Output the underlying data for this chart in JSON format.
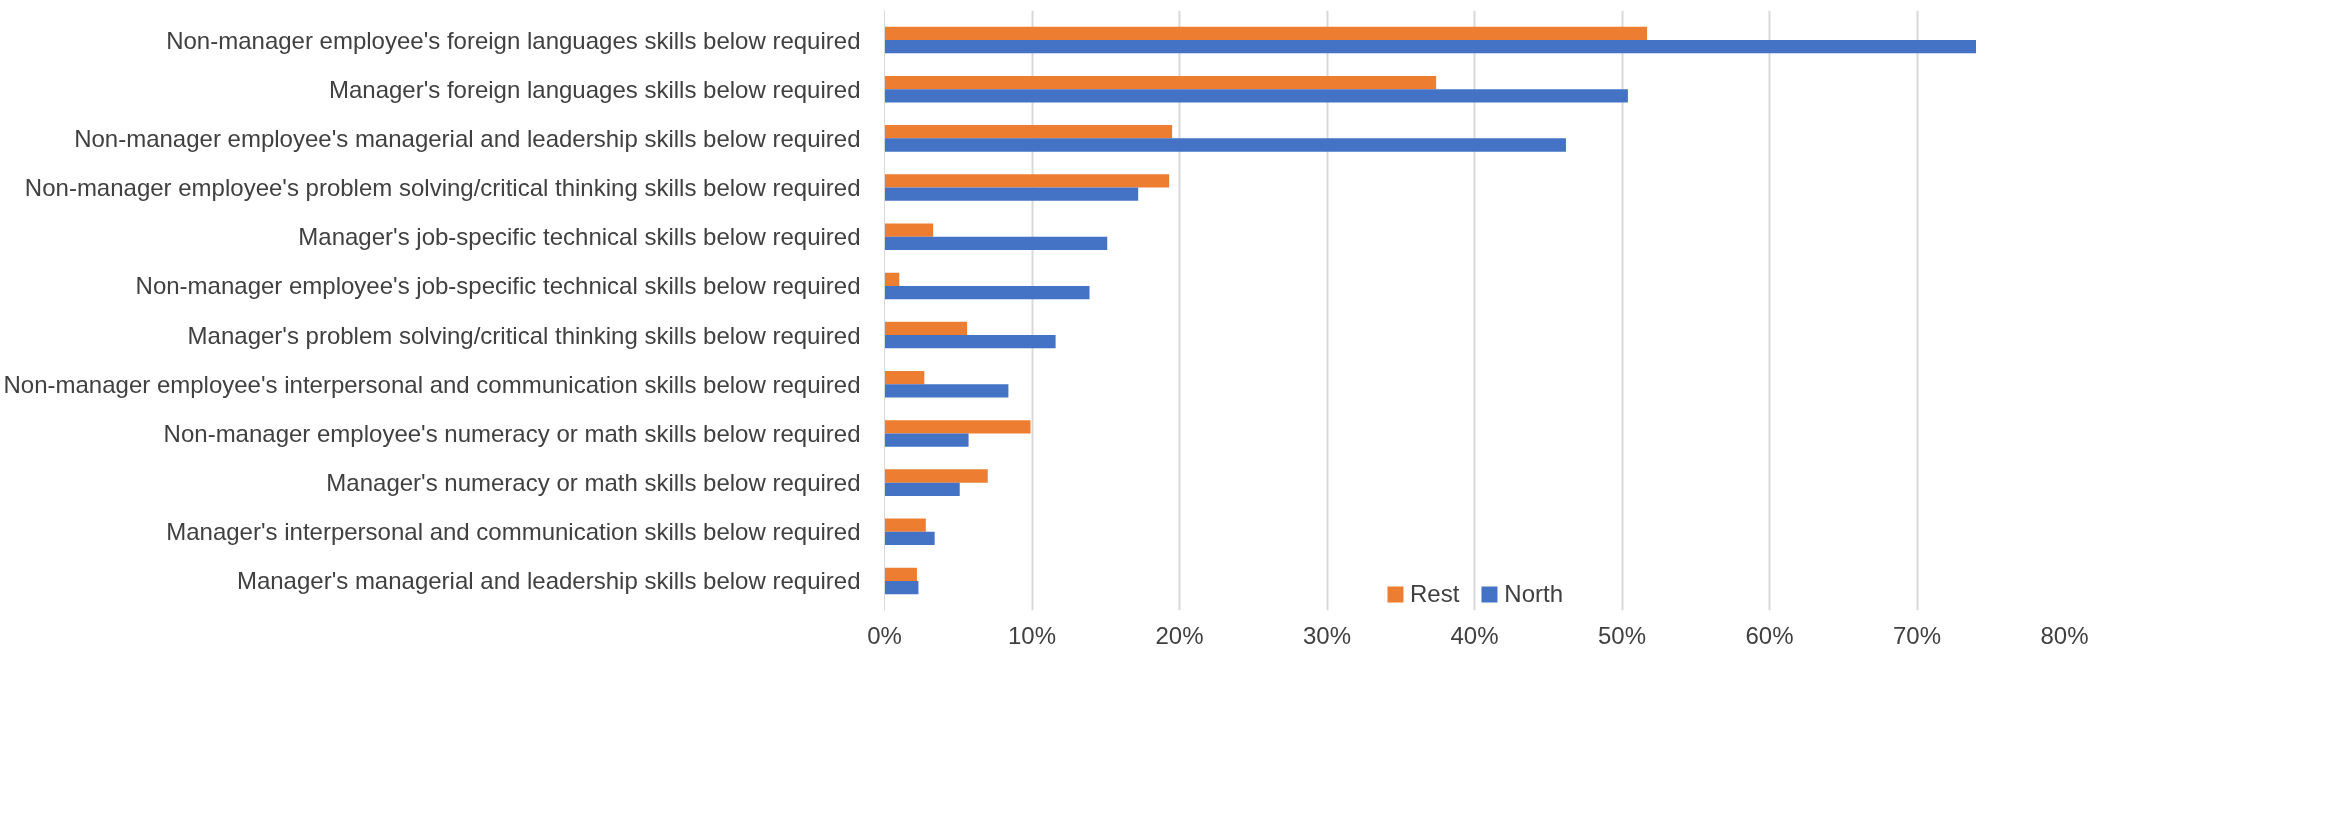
{
  "chart_data": {
    "type": "bar",
    "orientation": "horizontal",
    "categories": [
      "Non-manager employee's foreign languages skills below required",
      "Manager's foreign languages skills below required",
      "Non-manager employee's managerial and leadership skills below required",
      "Non-manager employee's problem solving/critical thinking skills below required",
      "Manager's job-specific technical skills below required",
      "Non-manager employee's job-specific technical skills below required",
      "Manager's problem solving/critical thinking skills below required",
      "Non-manager employee's interpersonal and communication skills below required",
      "Non-manager employee's numeracy or math skills below required",
      "Manager's numeracy or math skills below required",
      "Manager's interpersonal and communication skills below required",
      "Manager's managerial and leadership skills below required"
    ],
    "series": [
      {
        "name": "Rest",
        "color": "#ed7d31",
        "values": [
          51.7,
          37.4,
          19.5,
          19.3,
          3.3,
          1.0,
          5.6,
          2.7,
          9.9,
          7.0,
          2.8,
          2.2
        ]
      },
      {
        "name": "North",
        "color": "#4472c4",
        "values": [
          74.0,
          50.4,
          46.2,
          17.2,
          15.1,
          13.9,
          11.6,
          8.4,
          5.7,
          5.1,
          3.4,
          2.3
        ]
      }
    ],
    "xlim": [
      0,
      80
    ],
    "xticks": [
      {
        "value": 0,
        "label": "0%"
      },
      {
        "value": 10,
        "label": "10%"
      },
      {
        "value": 20,
        "label": "20%"
      },
      {
        "value": 30,
        "label": "30%"
      },
      {
        "value": 40,
        "label": "40%"
      },
      {
        "value": 50,
        "label": "50%"
      },
      {
        "value": 60,
        "label": "60%"
      },
      {
        "value": 70,
        "label": "70%"
      },
      {
        "value": 80,
        "label": "80%"
      }
    ],
    "grid": "x",
    "legend": "bottom"
  }
}
